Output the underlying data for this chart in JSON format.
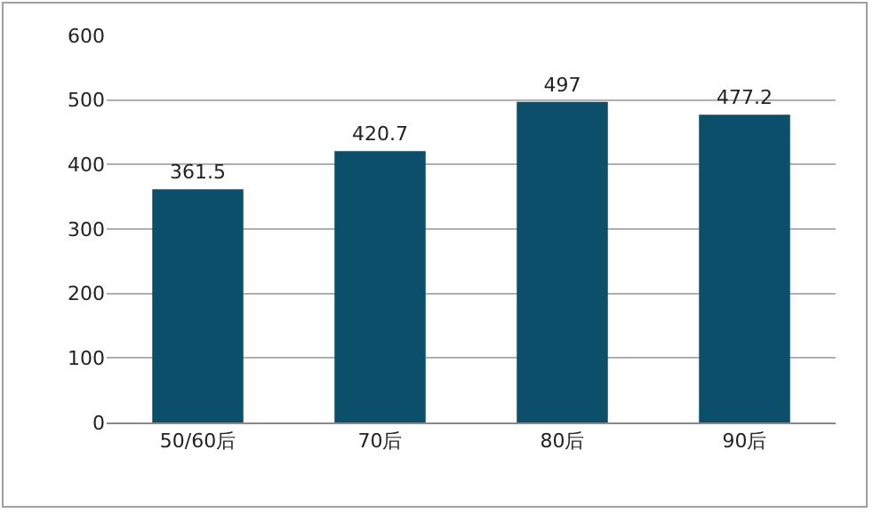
{
  "chart_data": {
    "type": "bar",
    "categories": [
      "50/60后",
      "70后",
      "80后",
      "90后"
    ],
    "values": [
      361.5,
      420.7,
      497,
      477.2
    ],
    "color": "#0b4f6b",
    "ylim": [
      0,
      600
    ],
    "yticks": [
      0,
      100,
      200,
      300,
      400,
      500,
      600
    ],
    "grid": "y",
    "data_labels": true
  }
}
